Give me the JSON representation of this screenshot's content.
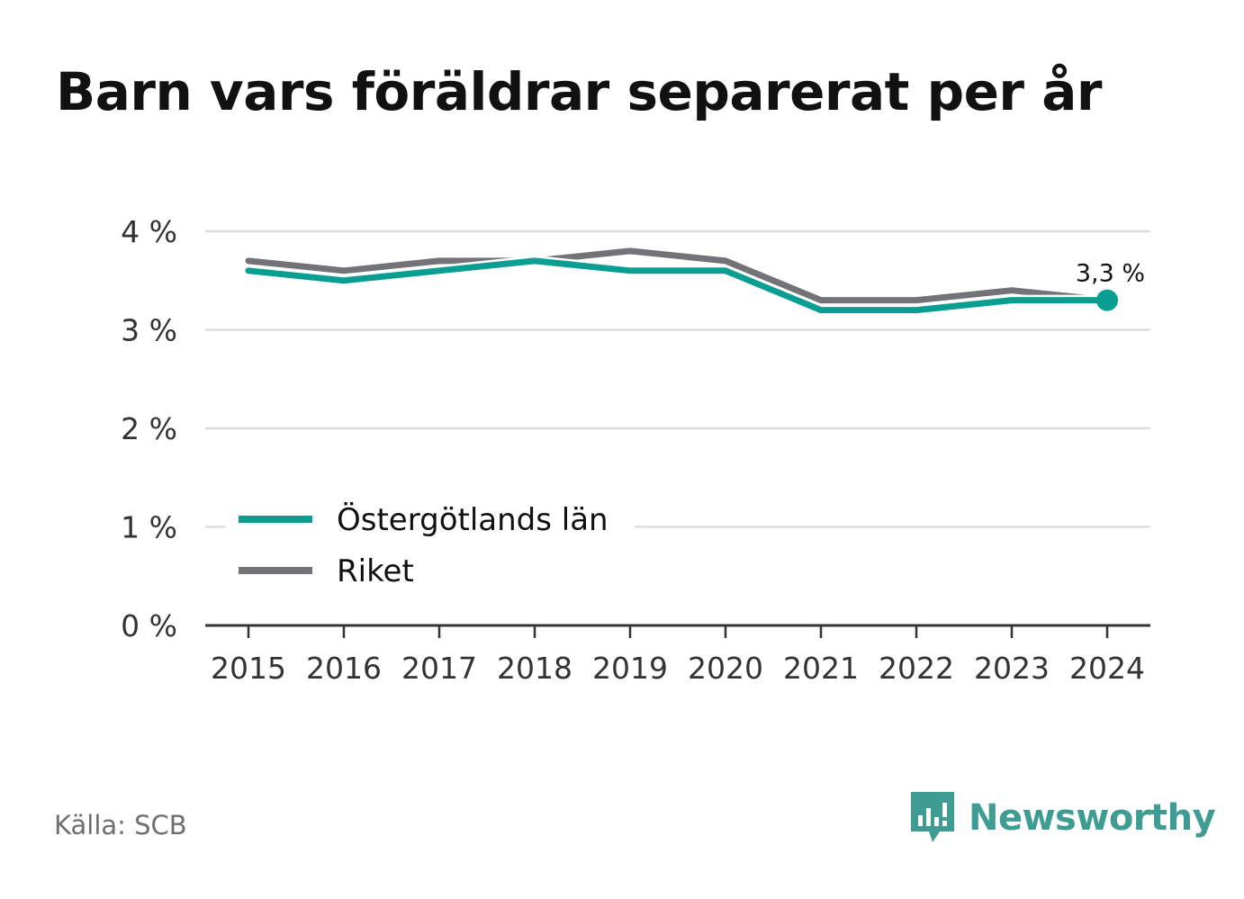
{
  "title": "Barn vars föräldrar separerat per år",
  "source": "Källa: SCB",
  "brand": {
    "name": "Newsworthy",
    "icon": "newsworthy-logo-icon"
  },
  "colors": {
    "primary": "#0a9e93",
    "secondary": "#737277",
    "grid": "#dddddd",
    "axis": "#333333"
  },
  "chart_data": {
    "type": "line",
    "title": "Barn vars föräldrar separerat per år",
    "xlabel": "",
    "ylabel": "",
    "x": [
      "2015",
      "2016",
      "2017",
      "2018",
      "2019",
      "2020",
      "2021",
      "2022",
      "2023",
      "2024"
    ],
    "ylim": [
      0,
      4
    ],
    "yticks": [
      0,
      1,
      2,
      3,
      4
    ],
    "ytick_labels": [
      "0 %",
      "1 %",
      "2 %",
      "3 %",
      "4 %"
    ],
    "grid": true,
    "legend_position": "bottom-left",
    "series": [
      {
        "name": "Riket",
        "color": "#737277",
        "values": [
          3.7,
          3.6,
          3.7,
          3.7,
          3.8,
          3.7,
          3.3,
          3.3,
          3.4,
          3.3
        ]
      },
      {
        "name": "Östergötlands län",
        "color": "#0a9e93",
        "values": [
          3.6,
          3.5,
          3.6,
          3.7,
          3.6,
          3.6,
          3.2,
          3.2,
          3.3,
          3.3
        ]
      }
    ],
    "legend": [
      "Östergötlands län",
      "Riket"
    ],
    "annotation": {
      "label": "3,3 %",
      "series": "Östergötlands län",
      "x": "2024"
    }
  }
}
